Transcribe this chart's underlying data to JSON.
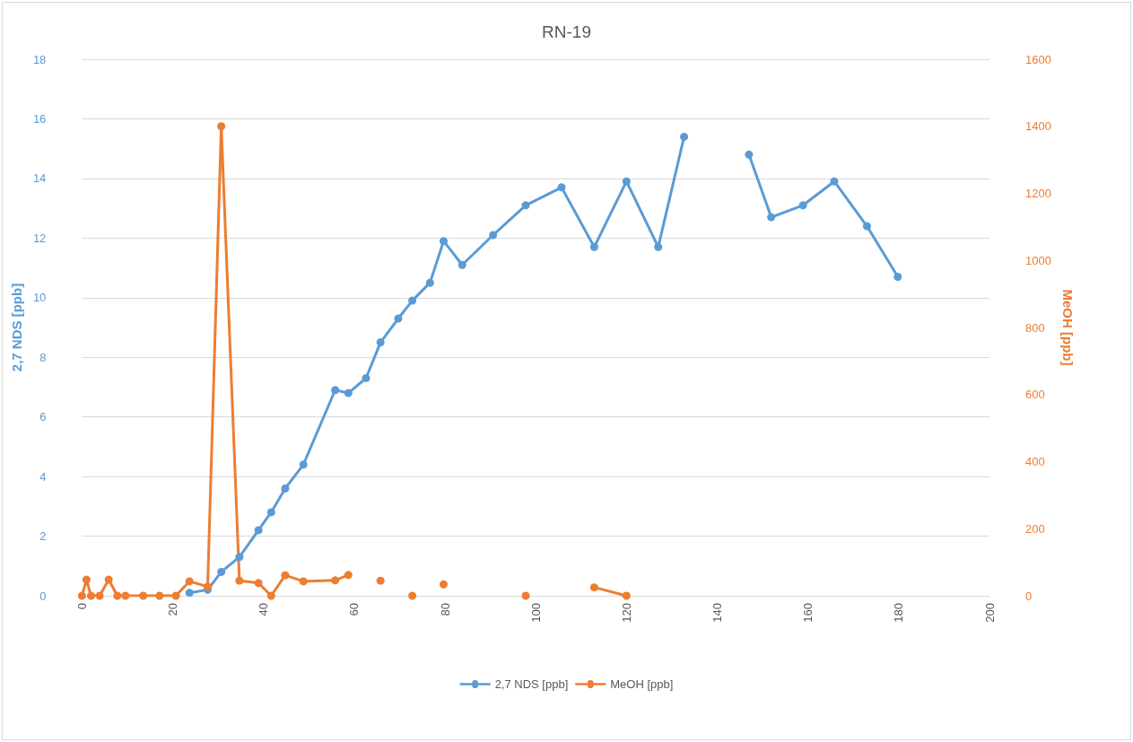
{
  "chart_data": {
    "type": "line",
    "title": "RN-19",
    "ylabel": "2,7 NDS [ppb]",
    "y2label": "MeOH [ppb]",
    "xlim": [
      0,
      200
    ],
    "xticks": [
      0,
      20,
      40,
      60,
      80,
      100,
      120,
      140,
      160,
      180,
      200
    ],
    "ylim": [
      0,
      18
    ],
    "yticks": [
      0,
      2,
      4,
      6,
      8,
      10,
      12,
      14,
      16,
      18
    ],
    "y2lim": [
      0,
      1600
    ],
    "y2ticks": [
      0,
      200,
      400,
      600,
      800,
      1000,
      1200,
      1400,
      1600
    ],
    "grid": "y",
    "legend": "bottom",
    "marker": "circle",
    "line_style": "solid",
    "series": [
      {
        "name": "2,7 NDS [ppb]",
        "color": "#5b9bd5",
        "x": [
          23.7,
          27.7,
          30.7,
          34.7,
          38.9,
          41.7,
          44.8,
          48.8,
          55.8,
          58.7,
          62.6,
          65.8,
          69.7,
          72.8,
          76.7,
          79.7,
          83.8,
          90.6,
          97.8,
          105.7,
          112.9,
          120,
          127,
          132.7,
          null,
          147,
          151.9,
          158.9,
          165.8,
          173,
          179.8
        ],
        "values": [
          0.1,
          0.2,
          0.8,
          1.3,
          2.2,
          2.8,
          3.6,
          4.4,
          6.9,
          6.8,
          7.3,
          8.5,
          9.3,
          9.9,
          10.5,
          11.9,
          11.1,
          12.1,
          13.1,
          13.7,
          11.7,
          13.9,
          11.7,
          15.4,
          null,
          14.8,
          12.7,
          13.1,
          13.9,
          12.4,
          10.7
        ]
      },
      {
        "name": "MeOH [ppb]",
        "color": "#ed7d31",
        "axis": "y2",
        "x": [
          0,
          1,
          2,
          3.9,
          5.9,
          7.8,
          9.6,
          13.5,
          17.1,
          20.7,
          23.7,
          27.7,
          30.7,
          34.7,
          38.9,
          41.7,
          44.8,
          48.8,
          55.8,
          58.7,
          null,
          65.8,
          null,
          72.8,
          null,
          79.7,
          null,
          97.8,
          null,
          112.9,
          120
        ],
        "values": [
          0,
          48,
          0,
          0,
          48,
          0,
          0,
          0,
          0,
          0,
          43,
          27,
          1400,
          45,
          38,
          0,
          61,
          43,
          46,
          62,
          null,
          45,
          null,
          0,
          null,
          34,
          null,
          0,
          null,
          25,
          0
        ]
      }
    ]
  }
}
